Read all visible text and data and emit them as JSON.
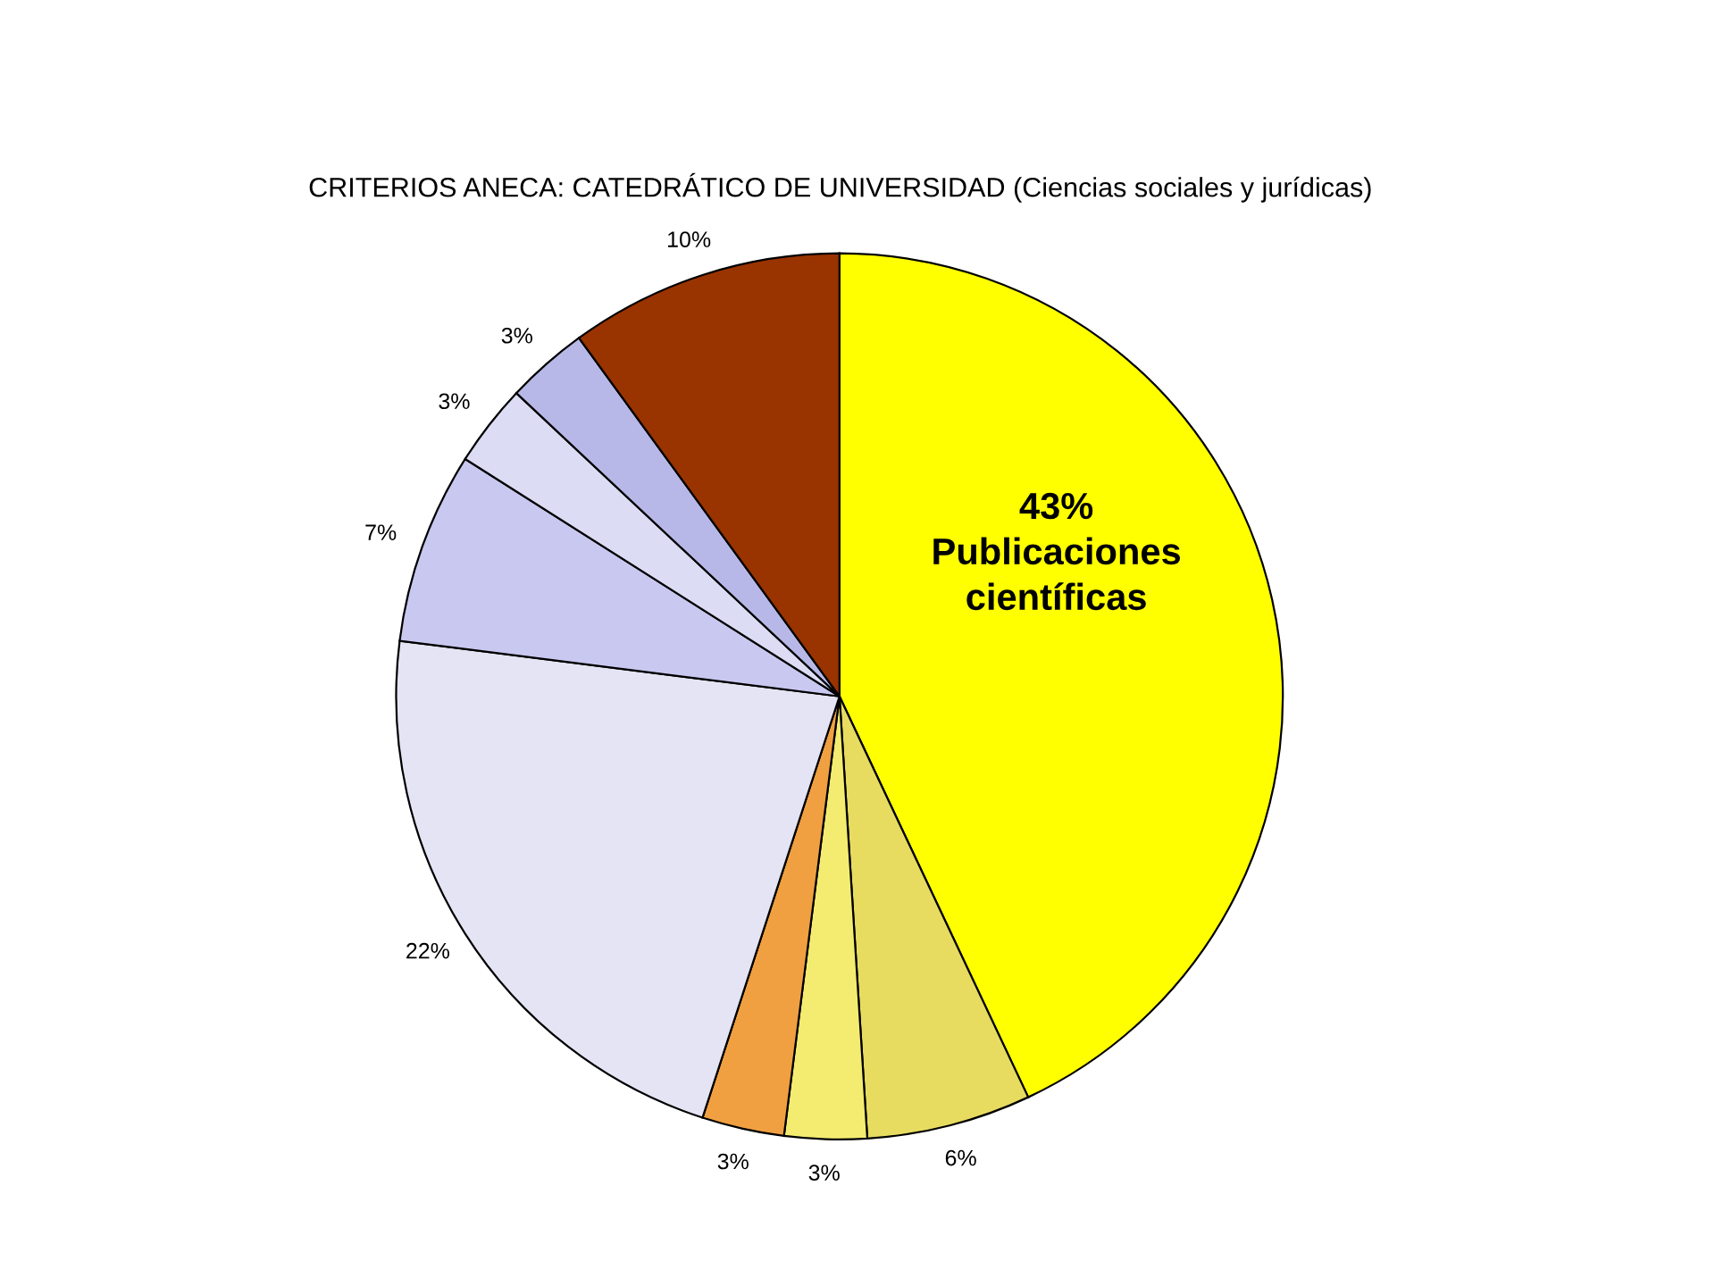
{
  "chart_data": {
    "type": "pie",
    "title": "CRITERIOS ANECA: CATEDRÁTICO DE UNIVERSIDAD (Ciencias sociales y jurídicas)",
    "categories": [
      "Publicaciones científicas",
      null,
      null,
      null,
      null,
      null,
      null,
      null,
      null
    ],
    "values": [
      43,
      6,
      3,
      3,
      22,
      7,
      3,
      3,
      10
    ],
    "value_labels": [
      "43%",
      "6%",
      "3%",
      "3%",
      "22%",
      "7%",
      "3%",
      "3%",
      "10%"
    ],
    "colors": [
      "#ffff00",
      "#e8dc60",
      "#f4ec70",
      "#f0a040",
      "#e4e4f4",
      "#c8c8f0",
      "#dcdcf4",
      "#b8b8e8",
      "#993300"
    ],
    "legend": false
  }
}
